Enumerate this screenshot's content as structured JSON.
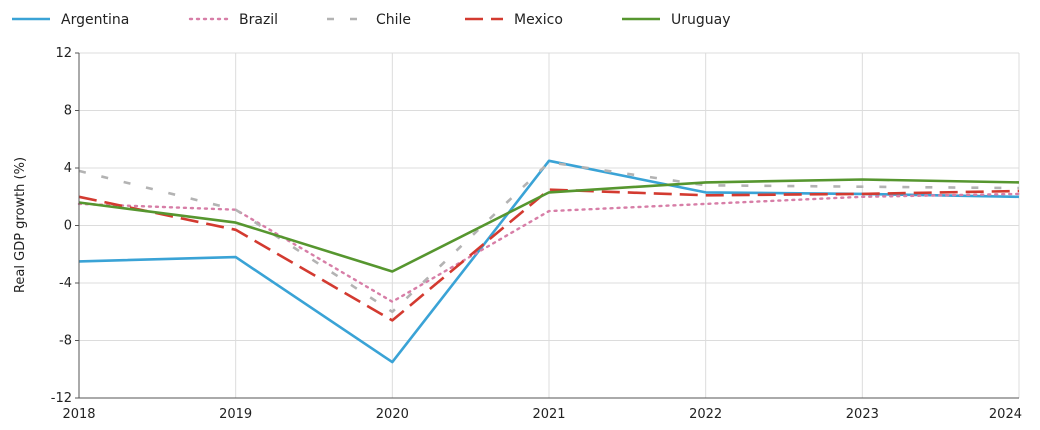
{
  "chart_data": {
    "type": "line",
    "x": [
      2018,
      2019,
      2020,
      2021,
      2022,
      2023,
      2024
    ],
    "x_tick_labels": [
      "2018",
      "2019",
      "2020",
      "2021",
      "2022",
      "2023",
      "2024"
    ],
    "y_ticks": [
      -12,
      -8,
      -4,
      0,
      4,
      8,
      12
    ],
    "y_tick_labels": [
      "-12",
      "-8",
      "-4",
      "0",
      "4",
      "8",
      "12"
    ],
    "ylim": [
      -12,
      12
    ],
    "xlim": [
      2018,
      2024
    ],
    "xlabel": "",
    "ylabel": "Real GDP growth (%)",
    "grid": true,
    "legend_position": "top",
    "series": [
      {
        "name": "Argentina",
        "color": "#3aa3d6",
        "dash": "solid",
        "values": [
          -2.5,
          -2.2,
          -9.5,
          4.5,
          2.3,
          2.2,
          2.0
        ]
      },
      {
        "name": "Brazil",
        "color": "#d77ea7",
        "dash": "dotted",
        "values": [
          1.5,
          1.1,
          -5.3,
          1.0,
          1.5,
          2.0,
          2.2
        ]
      },
      {
        "name": "Chile",
        "color": "#b3b3b3",
        "dash": "dashed",
        "values": [
          3.8,
          1.1,
          -6.0,
          4.4,
          2.8,
          2.7,
          2.6
        ]
      },
      {
        "name": "Mexico",
        "color": "#d33a30",
        "dash": "longdash",
        "values": [
          2.0,
          -0.3,
          -6.6,
          2.5,
          2.1,
          2.2,
          2.4
        ]
      },
      {
        "name": "Uruguay",
        "color": "#56962f",
        "dash": "solid",
        "values": [
          1.6,
          0.2,
          -3.2,
          2.3,
          3.0,
          3.2,
          3.0
        ]
      }
    ]
  }
}
